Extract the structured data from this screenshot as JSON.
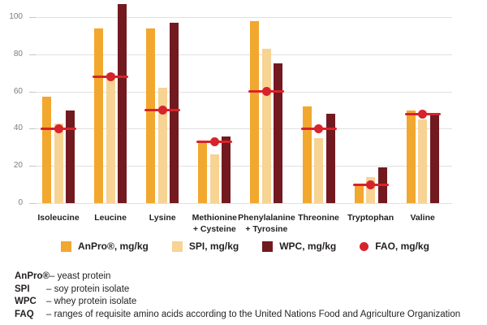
{
  "colors": {
    "anpro": "#F2A72E",
    "spi": "#F7D394",
    "wpc": "#721A1F",
    "fao": "#D7232B",
    "gridline": "#E0E0E0",
    "grid_tick": "#C6C6C6",
    "axis_label": "#7C7C7C",
    "text": "#231F20",
    "background": "#FFFFFF"
  },
  "chart_data": {
    "type": "bar",
    "title": "",
    "categories": [
      "Isoleucine",
      "Leucine",
      "Lysine",
      "Methionine + Cysteine",
      "Phenylalanine + Tyrosine",
      "Threonine",
      "Tryptophan",
      "Valine"
    ],
    "category_lines": [
      [
        "Isoleucine"
      ],
      [
        "Leucine"
      ],
      [
        "Lysine"
      ],
      [
        "Methionine",
        "+ Cysteine"
      ],
      [
        "Phenylalanine",
        "+ Tyrosine"
      ],
      [
        "Threonine"
      ],
      [
        "Tryptophan"
      ],
      [
        "Valine"
      ]
    ],
    "series": [
      {
        "name": "AnPro®, mg/kg",
        "color_key": "anpro",
        "marker": "square",
        "values": [
          57,
          94,
          94,
          33,
          98,
          52,
          9,
          50
        ]
      },
      {
        "name": "SPI, mg/kg",
        "color_key": "spi",
        "marker": "square",
        "values": [
          43,
          70,
          62,
          26,
          83,
          35,
          14,
          45
        ]
      },
      {
        "name": "WPC, mg/kg",
        "color_key": "wpc",
        "marker": "square",
        "values": [
          50,
          107,
          97,
          36,
          75,
          48,
          19,
          48
        ]
      },
      {
        "name": "FAO, mg/kg",
        "color_key": "fao",
        "marker": "circle",
        "style": "line-marker",
        "values": [
          40,
          68,
          50,
          33,
          60,
          40,
          10,
          48
        ]
      }
    ],
    "xlabel": "",
    "ylabel": "",
    "ylim": [
      0,
      110
    ],
    "yticks": [
      0,
      20,
      40,
      60,
      80,
      100
    ],
    "grid": true,
    "legend_position": "bottom"
  },
  "legend": {
    "items": [
      {
        "label": "AnPro®, mg/kg",
        "color_key": "anpro",
        "shape": "square"
      },
      {
        "label": "SPI, mg/kg",
        "color_key": "spi",
        "shape": "square"
      },
      {
        "label": "WPC, mg/kg",
        "color_key": "wpc",
        "shape": "square"
      },
      {
        "label": "FAO, mg/kg",
        "color_key": "fao",
        "shape": "circle"
      }
    ]
  },
  "footnotes": [
    {
      "term": "AnPro®",
      "definition": "– yeast protein"
    },
    {
      "term": "SPI",
      "definition": "– soy protein isolate"
    },
    {
      "term": "WPC",
      "definition": "– whey protein isolate"
    },
    {
      "term": "FAQ",
      "definition": "– ranges of requisite amino acids according to the United Nations Food and Agriculture Organization"
    }
  ]
}
